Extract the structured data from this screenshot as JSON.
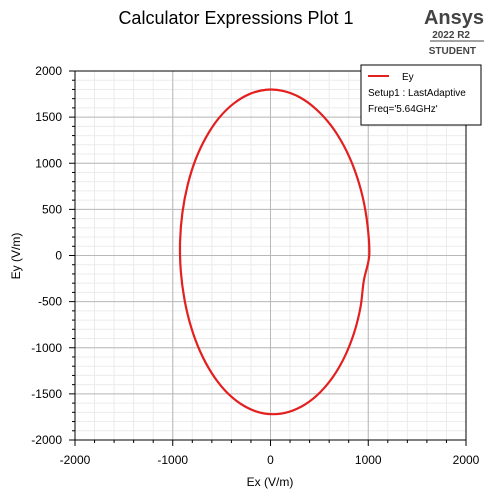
{
  "brand": {
    "name": "Ansys",
    "version": "2022 R2",
    "edition": "STUDENT"
  },
  "chart_data": {
    "type": "line",
    "title": "Calculator Expressions Plot 1",
    "xlabel": "Ex (V/m)",
    "ylabel": "Ey (V/m)",
    "xlim": [
      -2000,
      2000
    ],
    "ylim": [
      -2000,
      2000
    ],
    "x_ticks": [
      -2000,
      -1000,
      0,
      1000,
      2000
    ],
    "y_ticks": [
      -2000,
      -1500,
      -1000,
      -500,
      0,
      500,
      1000,
      1500,
      2000
    ],
    "grid": true,
    "legend": {
      "placement": "top-right",
      "entries": [
        "Ey",
        "Setup1 : LastAdaptive",
        "Freq='5.64GHz'"
      ]
    },
    "series": [
      {
        "name": "Ey",
        "color": "#e32020",
        "x": [
          1010,
          993,
          943,
          861,
          751,
          618,
          465,
          301,
          129,
          -44,
          -215,
          -377,
          -526,
          -656,
          -765,
          -847,
          -901,
          -925,
          -918,
          -880,
          -813,
          -719,
          -601,
          -464,
          -311,
          -148,
          20,
          190,
          356,
          510,
          648,
          765,
          857,
          921,
          955,
          1010
        ],
        "y": [
          0,
          322,
          634,
          926,
          1188,
          1411,
          1588,
          1714,
          1784,
          1797,
          1750,
          1647,
          1492,
          1288,
          1044,
          767,
          467,
          153,
          -165,
          -477,
          -773,
          -1042,
          -1275,
          -1465,
          -1604,
          -1690,
          -1720,
          -1694,
          -1613,
          -1481,
          -1302,
          -1083,
          -833,
          -559,
          -271,
          0
        ]
      }
    ]
  }
}
